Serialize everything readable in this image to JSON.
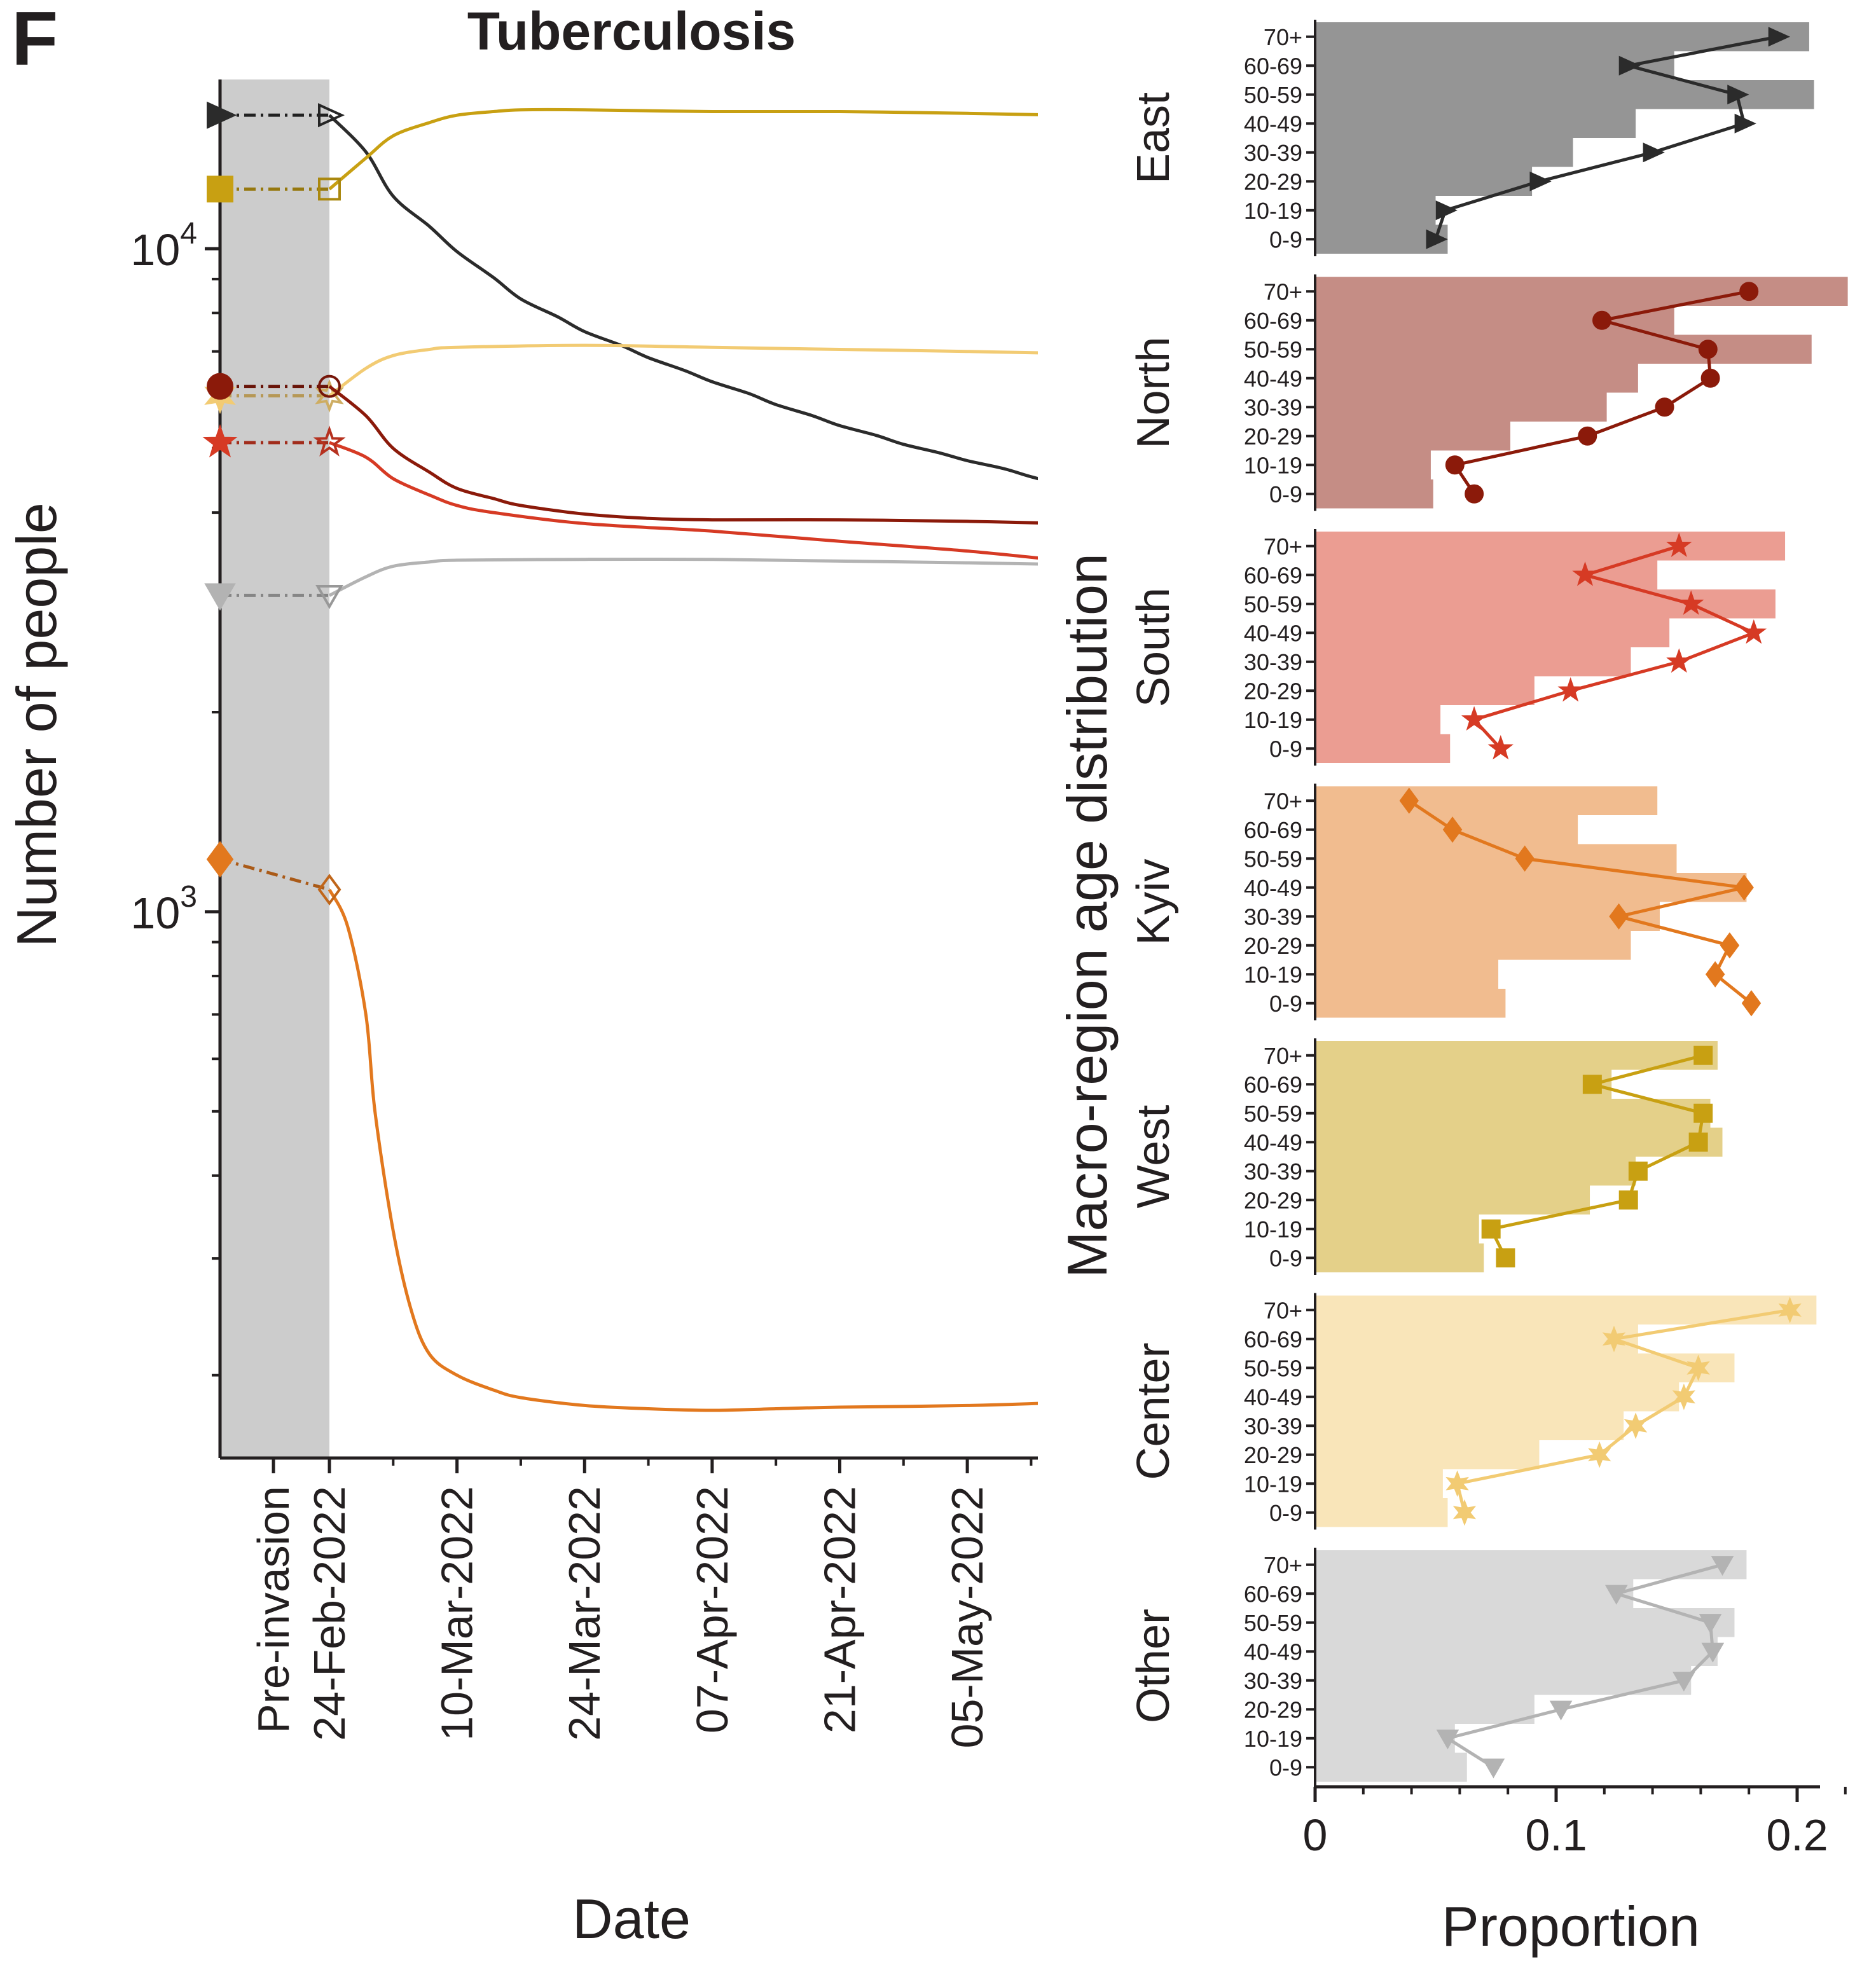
{
  "panel_letter": "F",
  "colors": {
    "East": "#2b2b2b",
    "North": "#8b1a0a",
    "South": "#d63a24",
    "Kyiv": "#e2781e",
    "West": "#c8a012",
    "Center": "#f2cb73",
    "Other": "#b3b3b3"
  },
  "chart_data": [
    {
      "type": "line",
      "title": "Tuberculosis",
      "xlabel": "Date",
      "ylabel": "Number of people",
      "yscale": "log",
      "ylim": [
        150,
        18000
      ],
      "x_ticks": [
        "Pre-invasion",
        "24-Feb-2022",
        "10-Mar-2022",
        "24-Mar-2022",
        "07-Apr-2022",
        "21-Apr-2022",
        "05-May-2022"
      ],
      "y_ticks": [
        {
          "value": 1000,
          "base": "10",
          "exp": "3"
        },
        {
          "value": 10000,
          "base": "10",
          "exp": "4"
        }
      ],
      "shaded_region": [
        "Pre-invasion",
        "24-Feb-2022"
      ],
      "series": [
        {
          "name": "East",
          "marker": "triangle-right",
          "pre_invasion": 15900,
          "values": [
            [
              "24-Feb-2022",
              15900
            ],
            [
              "28-Feb-2022",
              14000
            ],
            [
              "03-Mar-2022",
              12000
            ],
            [
              "07-Mar-2022",
              10800
            ],
            [
              "10-Mar-2022",
              9900
            ],
            [
              "14-Mar-2022",
              9050
            ],
            [
              "17-Mar-2022",
              8400
            ],
            [
              "21-Mar-2022",
              7900
            ],
            [
              "24-Mar-2022",
              7500
            ],
            [
              "28-Mar-2022",
              7150
            ],
            [
              "31-Mar-2022",
              6850
            ],
            [
              "04-Apr-2022",
              6550
            ],
            [
              "07-Apr-2022",
              6300
            ],
            [
              "11-Apr-2022",
              6050
            ],
            [
              "14-Apr-2022",
              5820
            ],
            [
              "18-Apr-2022",
              5600
            ],
            [
              "21-Apr-2022",
              5410
            ],
            [
              "25-Apr-2022",
              5230
            ],
            [
              "28-Apr-2022",
              5070
            ],
            [
              "02-May-2022",
              4920
            ],
            [
              "05-May-2022",
              4790
            ],
            [
              "09-May-2022",
              4660
            ],
            [
              "12-May-2022",
              4530
            ],
            [
              "16-May-2022",
              4390
            ]
          ]
        },
        {
          "name": "West",
          "marker": "square",
          "pre_invasion": 12300,
          "values": [
            [
              "24-Feb-2022",
              12300
            ],
            [
              "28-Feb-2022",
              13700
            ],
            [
              "03-Mar-2022",
              14800
            ],
            [
              "07-Mar-2022",
              15500
            ],
            [
              "10-Mar-2022",
              15900
            ],
            [
              "14-Mar-2022",
              16100
            ],
            [
              "17-Mar-2022",
              16200
            ],
            [
              "24-Mar-2022",
              16200
            ],
            [
              "07-Apr-2022",
              16100
            ],
            [
              "21-Apr-2022",
              16100
            ],
            [
              "05-May-2022",
              16000
            ],
            [
              "16-May-2022",
              15900
            ]
          ]
        },
        {
          "name": "Center",
          "marker": "star6",
          "pre_invasion": 6000,
          "values": [
            [
              "24-Feb-2022",
              6000
            ],
            [
              "28-Feb-2022",
              6600
            ],
            [
              "03-Mar-2022",
              6900
            ],
            [
              "07-Mar-2022",
              7050
            ],
            [
              "10-Mar-2022",
              7100
            ],
            [
              "24-Mar-2022",
              7150
            ],
            [
              "07-Apr-2022",
              7100
            ],
            [
              "21-Apr-2022",
              7050
            ],
            [
              "05-May-2022",
              7000
            ],
            [
              "16-May-2022",
              6950
            ]
          ]
        },
        {
          "name": "North",
          "marker": "circle",
          "pre_invasion": 6200,
          "values": [
            [
              "24-Feb-2022",
              6200
            ],
            [
              "28-Feb-2022",
              5600
            ],
            [
              "03-Mar-2022",
              5000
            ],
            [
              "07-Mar-2022",
              4600
            ],
            [
              "10-Mar-2022",
              4350
            ],
            [
              "14-Mar-2022",
              4200
            ],
            [
              "17-Mar-2022",
              4100
            ],
            [
              "24-Mar-2022",
              3980
            ],
            [
              "31-Mar-2022",
              3920
            ],
            [
              "07-Apr-2022",
              3900
            ],
            [
              "21-Apr-2022",
              3900
            ],
            [
              "05-May-2022",
              3880
            ],
            [
              "16-May-2022",
              3850
            ]
          ]
        },
        {
          "name": "South",
          "marker": "star5",
          "pre_invasion": 5100,
          "values": [
            [
              "24-Feb-2022",
              5100
            ],
            [
              "28-Feb-2022",
              4850
            ],
            [
              "03-Mar-2022",
              4500
            ],
            [
              "07-Mar-2022",
              4250
            ],
            [
              "10-Mar-2022",
              4100
            ],
            [
              "14-Mar-2022",
              4000
            ],
            [
              "24-Mar-2022",
              3850
            ],
            [
              "07-Apr-2022",
              3750
            ],
            [
              "21-Apr-2022",
              3620
            ],
            [
              "05-May-2022",
              3500
            ],
            [
              "16-May-2022",
              3380
            ]
          ]
        },
        {
          "name": "Other",
          "marker": "triangle-down",
          "pre_invasion": 3000,
          "values": [
            [
              "24-Feb-2022",
              3000
            ],
            [
              "28-Feb-2022",
              3200
            ],
            [
              "03-Mar-2022",
              3320
            ],
            [
              "07-Mar-2022",
              3370
            ],
            [
              "10-Mar-2022",
              3390
            ],
            [
              "24-Mar-2022",
              3400
            ],
            [
              "07-Apr-2022",
              3400
            ],
            [
              "21-Apr-2022",
              3380
            ],
            [
              "05-May-2022",
              3360
            ],
            [
              "16-May-2022",
              3340
            ]
          ]
        },
        {
          "name": "Kyiv",
          "marker": "diamond",
          "pre_invasion": 1200,
          "values": [
            [
              "24-Feb-2022",
              1080
            ],
            [
              "26-Feb-2022",
              950
            ],
            [
              "28-Feb-2022",
              700
            ],
            [
              "01-Mar-2022",
              500
            ],
            [
              "03-Mar-2022",
              330
            ],
            [
              "05-Mar-2022",
              250
            ],
            [
              "07-Mar-2022",
              215
            ],
            [
              "10-Mar-2022",
              200
            ],
            [
              "14-Mar-2022",
              190
            ],
            [
              "17-Mar-2022",
              185
            ],
            [
              "24-Mar-2022",
              180
            ],
            [
              "31-Mar-2022",
              178
            ],
            [
              "07-Apr-2022",
              177
            ],
            [
              "14-Apr-2022",
              178
            ],
            [
              "21-Apr-2022",
              179
            ],
            [
              "05-May-2022",
              180
            ],
            [
              "16-May-2022",
              182
            ]
          ]
        }
      ]
    },
    {
      "type": "bar",
      "orientation": "horizontal",
      "xlabel": "Proportion",
      "ylabel": "Macro-region age distribution",
      "xlim": [
        0,
        0.22
      ],
      "x_ticks": [
        "0",
        "0.1",
        "0.2"
      ],
      "categories": [
        "0-9",
        "10-19",
        "20-29",
        "30-39",
        "40-49",
        "50-59",
        "60-69",
        "70+"
      ],
      "note": "bars = pre-invasion age distribution; lines with markers = post-invasion age distribution",
      "regions": [
        {
          "name": "East",
          "bars": [
            0.055,
            0.05,
            0.09,
            0.107,
            0.133,
            0.207,
            0.149,
            0.205
          ],
          "points": [
            0.05,
            0.054,
            0.093,
            0.14,
            0.178,
            0.175,
            0.13,
            0.192
          ]
        },
        {
          "name": "North",
          "bars": [
            0.049,
            0.048,
            0.081,
            0.121,
            0.134,
            0.206,
            0.149,
            0.221
          ],
          "points": [
            0.066,
            0.058,
            0.113,
            0.145,
            0.164,
            0.163,
            0.119,
            0.18
          ]
        },
        {
          "name": "South",
          "bars": [
            0.056,
            0.052,
            0.091,
            0.131,
            0.147,
            0.191,
            0.142,
            0.195
          ],
          "points": [
            0.077,
            0.066,
            0.106,
            0.151,
            0.182,
            0.156,
            0.112,
            0.151
          ]
        },
        {
          "name": "Kyiv",
          "bars": [
            0.079,
            0.076,
            0.131,
            0.143,
            0.179,
            0.15,
            0.109,
            0.142
          ],
          "points": [
            0.181,
            0.166,
            0.172,
            0.126,
            0.178,
            0.087,
            0.057,
            0.039
          ]
        },
        {
          "name": "West",
          "bars": [
            0.07,
            0.068,
            0.114,
            0.133,
            0.169,
            0.164,
            0.123,
            0.167
          ],
          "points": [
            0.079,
            0.073,
            0.13,
            0.134,
            0.159,
            0.161,
            0.115,
            0.161
          ]
        },
        {
          "name": "Center",
          "bars": [
            0.055,
            0.053,
            0.093,
            0.128,
            0.151,
            0.174,
            0.134,
            0.208
          ],
          "points": [
            0.062,
            0.059,
            0.118,
            0.133,
            0.153,
            0.159,
            0.124,
            0.197
          ]
        },
        {
          "name": "Other",
          "bars": [
            0.063,
            0.058,
            0.091,
            0.156,
            0.167,
            0.174,
            0.132,
            0.179
          ],
          "points": [
            0.074,
            0.055,
            0.102,
            0.153,
            0.165,
            0.164,
            0.125,
            0.169
          ]
        }
      ]
    }
  ]
}
